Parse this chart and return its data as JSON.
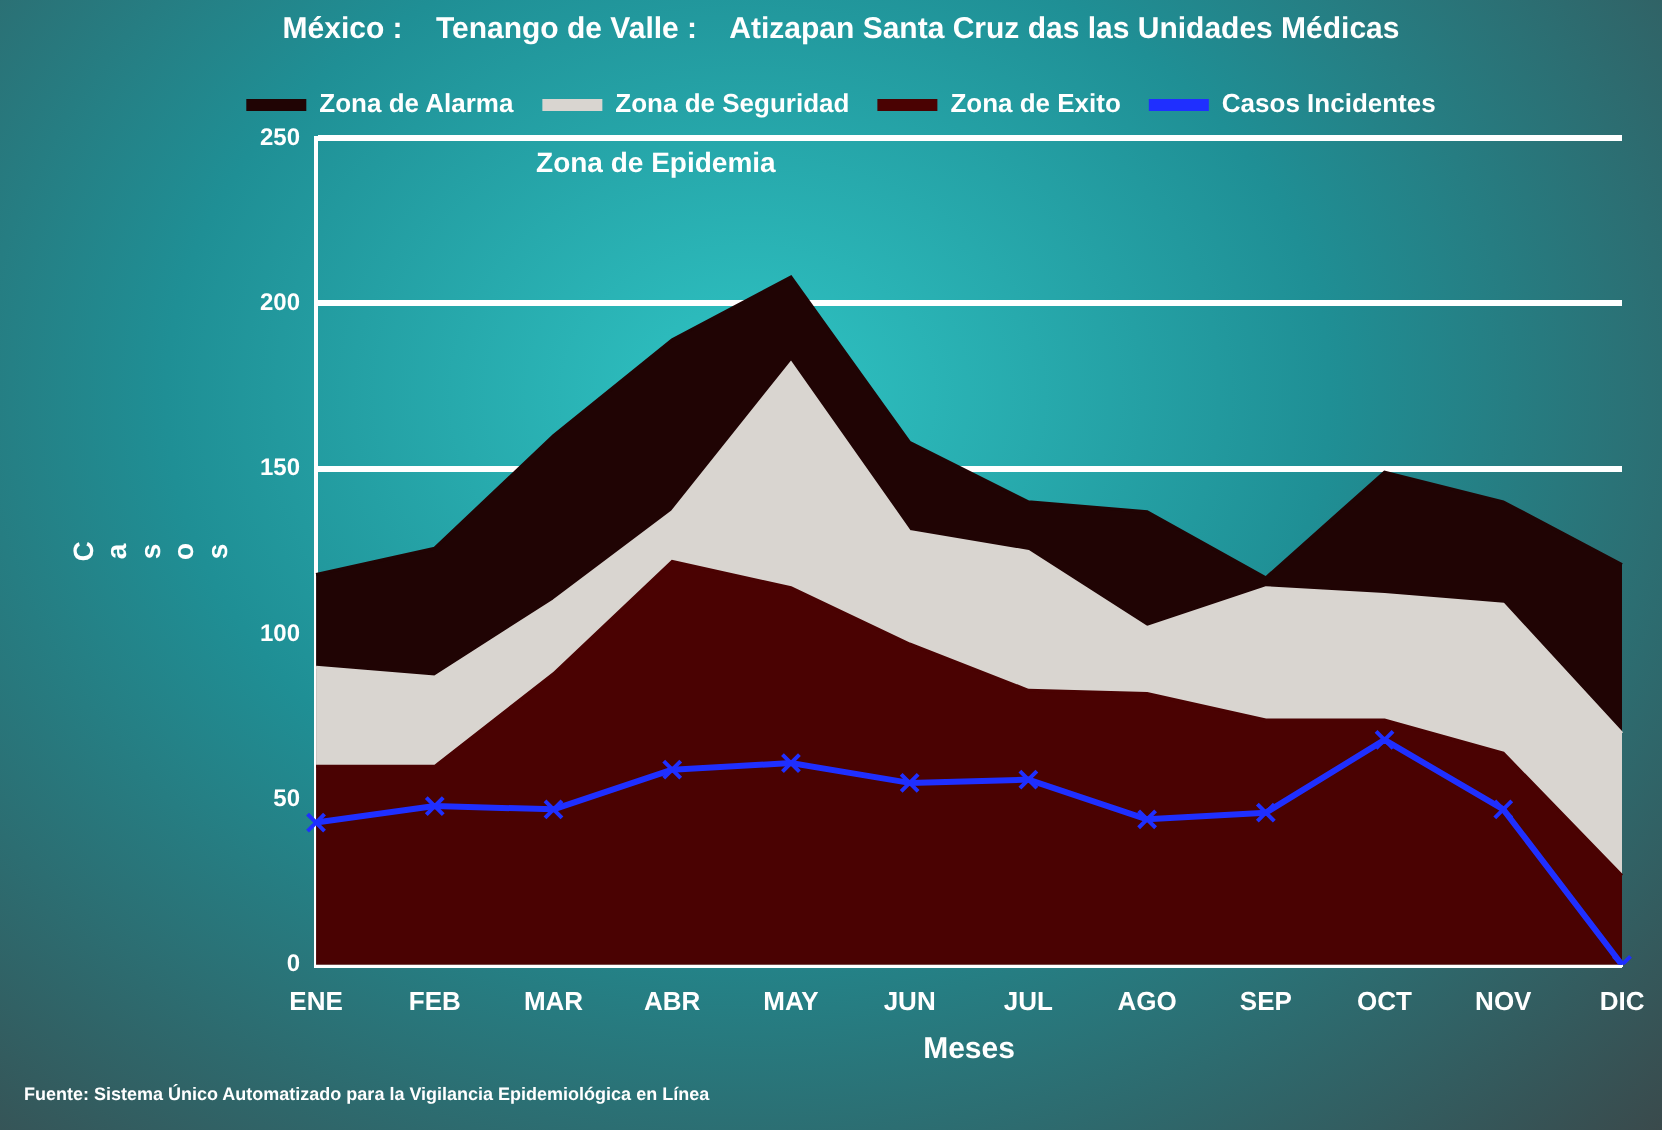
{
  "chart_data": {
    "type": "area",
    "title": "México :    Tenango de Valle :    Atizapan Santa Cruz das las Unidades Médicas",
    "xlabel": "Meses",
    "ylabel": "Casos",
    "categories": [
      "ENE",
      "FEB",
      "MAR",
      "ABR",
      "MAY",
      "JUN",
      "JUL",
      "AGO",
      "SEP",
      "OCT",
      "NOV",
      "DIC"
    ],
    "series": [
      {
        "name": "Zona de Alarma",
        "color": "#200404",
        "values": [
          118,
          126,
          160,
          189,
          208,
          158,
          140,
          137,
          117,
          149,
          140,
          121
        ]
      },
      {
        "name": "Zona de Seguridad",
        "color": "#d9d5d0",
        "values": [
          90,
          87,
          110,
          137,
          182,
          131,
          125,
          102,
          114,
          112,
          109,
          70
        ]
      },
      {
        "name": "Zona de Exito",
        "color": "#4a0202",
        "values": [
          60,
          60,
          88,
          122,
          114,
          97,
          83,
          82,
          74,
          74,
          64,
          27
        ]
      },
      {
        "name": "Casos Incidentes",
        "type": "line",
        "marker": "cross",
        "color": "#1f2fff",
        "values": [
          43,
          48,
          47,
          59,
          61,
          55,
          56,
          44,
          46,
          68,
          47,
          0
        ]
      }
    ],
    "ylim": [
      0,
      250
    ],
    "yticks": [
      0,
      50,
      100,
      150,
      200,
      250
    ],
    "grid": "y",
    "legend": "top",
    "annotations": [
      "Zona de Epidemia",
      "Fuente: Sistema Único Automatizado para la Vigilancia Epidemiológica en Línea"
    ]
  }
}
